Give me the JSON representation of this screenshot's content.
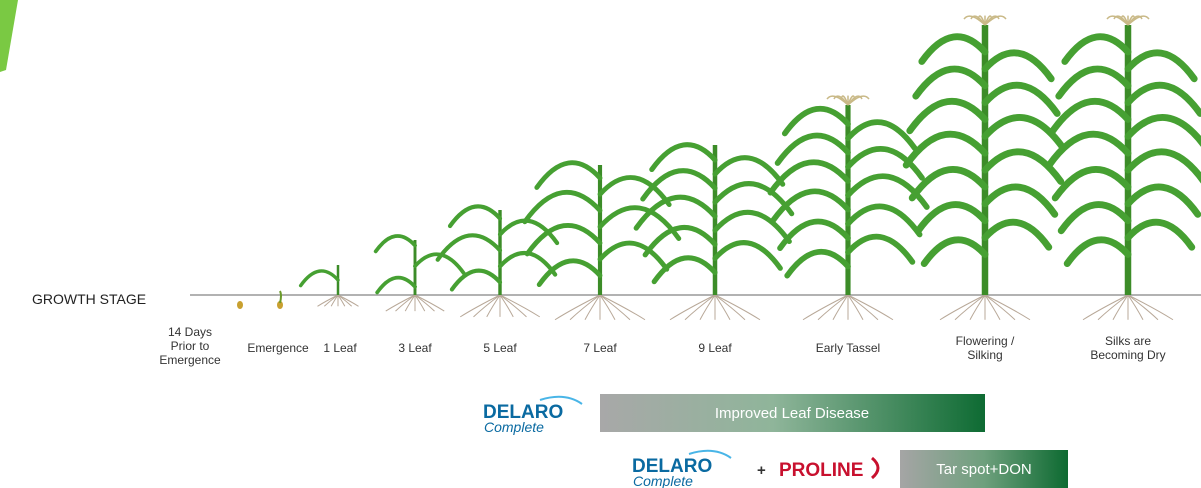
{
  "axis_label": "GROWTH STAGE",
  "stages": [
    {
      "lines": [
        "14 Days",
        "Prior to",
        "Emergence"
      ]
    },
    {
      "lines": [
        "Emergence"
      ]
    },
    {
      "lines": [
        "1 Leaf"
      ]
    },
    {
      "lines": [
        "3 Leaf"
      ]
    },
    {
      "lines": [
        "5 Leaf"
      ]
    },
    {
      "lines": [
        "7 Leaf"
      ]
    },
    {
      "lines": [
        "9 Leaf"
      ]
    },
    {
      "lines": [
        "Early Tassel"
      ]
    },
    {
      "lines": [
        "Flowering /",
        "Silking"
      ]
    },
    {
      "lines": [
        "Silks are",
        "Becoming Dry"
      ]
    }
  ],
  "programs": [
    {
      "brand": "DELARO",
      "brand_sub": "Complete",
      "bar_text": "Improved Leaf Disease"
    },
    {
      "brand": "DELARO",
      "brand_sub": "Complete",
      "plus": "+",
      "partner": "PROLINE",
      "bar_text": "Tar spot+DON"
    }
  ]
}
